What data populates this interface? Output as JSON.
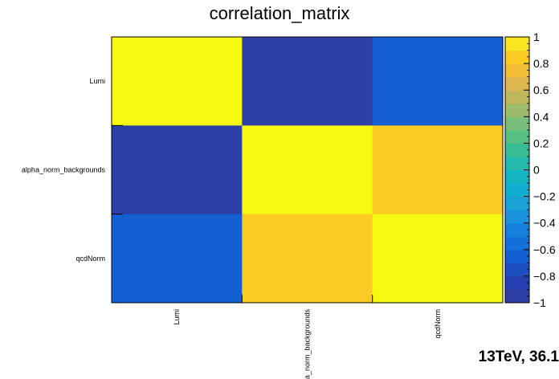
{
  "chart_data": {
    "type": "heatmap",
    "title": "correlation_matrix",
    "x_labels": [
      "Lumi",
      "alpha_norm_backgrounds",
      "qcdNorm"
    ],
    "y_labels": [
      "Lumi",
      "alpha_norm_backgrounds",
      "qcdNorm"
    ],
    "values": [
      [
        1.0,
        -0.93,
        -0.69
      ],
      [
        -0.93,
        1.0,
        0.85
      ],
      [
        -0.69,
        0.85,
        1.0
      ]
    ],
    "zlim": [
      -1,
      1
    ],
    "colorbar_ticks": [
      "1",
      "0.8",
      "0.6",
      "0.4",
      "0.2",
      "0",
      "−0.2",
      "−0.4",
      "−0.6",
      "−0.8",
      "−1"
    ],
    "colorbar_levels": 20,
    "palette": [
      "#2b3fa5",
      "#233fb0",
      "#1b4ebf",
      "#1460d2",
      "#1471db",
      "#1581dc",
      "#1a92dc",
      "#1aa2d6",
      "#12aecf",
      "#14b4c0",
      "#23b9ab",
      "#37bd93",
      "#56c083",
      "#78c07a",
      "#9cbc6c",
      "#bfb75c",
      "#ddb650",
      "#f4bd36",
      "#fbcb23",
      "#f9e520",
      "#f7f80f"
    ]
  },
  "annotation": "13TeV, 36.1"
}
